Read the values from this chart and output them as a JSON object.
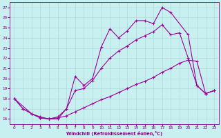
{
  "xlabel": "Windchill (Refroidissement éolien,°C)",
  "xlim": [
    -0.5,
    23.5
  ],
  "ylim": [
    15.5,
    27.5
  ],
  "yticks": [
    16,
    17,
    18,
    19,
    20,
    21,
    22,
    23,
    24,
    25,
    26,
    27
  ],
  "xticks": [
    0,
    1,
    2,
    3,
    4,
    5,
    6,
    7,
    8,
    9,
    10,
    11,
    12,
    13,
    14,
    15,
    16,
    17,
    18,
    19,
    20,
    21,
    22,
    23
  ],
  "background_color": "#c8f0f0",
  "grid_color": "#b0d8d8",
  "line_color": "#990099",
  "line1_x": [
    0,
    1,
    2,
    3,
    4,
    5,
    6,
    7,
    8,
    9,
    10,
    11,
    12,
    13,
    14,
    15,
    16,
    17,
    18,
    20,
    21,
    22,
    23
  ],
  "line1_y": [
    18.0,
    17.0,
    16.5,
    16.1,
    16.0,
    16.2,
    17.0,
    20.2,
    19.3,
    20.0,
    23.1,
    24.9,
    24.0,
    24.7,
    25.7,
    25.7,
    25.4,
    27.0,
    26.5,
    24.3,
    19.3,
    18.5,
    18.8
  ],
  "line2_x": [
    0,
    2,
    3,
    4,
    5,
    6,
    7,
    8,
    9,
    10,
    11,
    12,
    13,
    14,
    15,
    16,
    17,
    18,
    19,
    20,
    21,
    22,
    23
  ],
  "line2_y": [
    18.0,
    16.5,
    16.1,
    16.0,
    16.0,
    17.0,
    18.8,
    19.0,
    19.8,
    21.0,
    22.0,
    22.7,
    23.2,
    23.8,
    24.2,
    24.6,
    25.3,
    24.3,
    24.5,
    22.0,
    19.3,
    18.5,
    18.8
  ],
  "line3_x": [
    0,
    1,
    2,
    3,
    4,
    5,
    6,
    7,
    8,
    9,
    10,
    11,
    12,
    13,
    14,
    15,
    16,
    17,
    18,
    19,
    20,
    21,
    22,
    23
  ],
  "line3_y": [
    18.0,
    17.0,
    16.5,
    16.2,
    16.0,
    16.1,
    16.3,
    16.7,
    17.1,
    17.5,
    17.9,
    18.2,
    18.6,
    19.0,
    19.4,
    19.7,
    20.1,
    20.6,
    21.0,
    21.5,
    21.8,
    21.7,
    18.5,
    18.8
  ]
}
